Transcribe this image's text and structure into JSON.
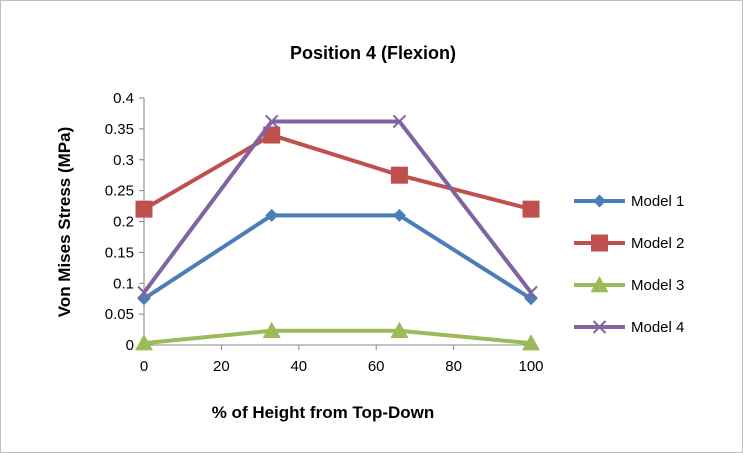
{
  "chart_data": {
    "type": "line",
    "title": "Position 4 (Flexion)",
    "xlabel": "% of Height from Top-Down",
    "ylabel": "Von Mises Stress (MPa)",
    "xlim": [
      0,
      100
    ],
    "ylim": [
      0,
      0.4
    ],
    "xticks": [
      0,
      20,
      40,
      60,
      80,
      100
    ],
    "yticks": [
      0,
      0.05,
      0.1,
      0.15,
      0.2,
      0.25,
      0.3,
      0.35,
      0.4
    ],
    "x_tick_labels": [
      "0",
      "20",
      "40",
      "60",
      "80",
      "100"
    ],
    "y_tick_labels": [
      "0",
      "0.05",
      "0.1",
      "0.15",
      "0.2",
      "0.25",
      "0.3",
      "0.35",
      "0.4"
    ],
    "grid": false,
    "legend_position": "right",
    "x": [
      0,
      33,
      66,
      100
    ],
    "series": [
      {
        "name": "Model 1",
        "values": [
          0.075,
          0.21,
          0.21,
          0.075
        ],
        "color": "#4a7ebb",
        "marker": "diamond"
      },
      {
        "name": "Model 2",
        "values": [
          0.22,
          0.34,
          0.275,
          0.22
        ],
        "color": "#c0504d",
        "marker": "square"
      },
      {
        "name": "Model 3",
        "values": [
          0.003,
          0.023,
          0.023,
          0.003
        ],
        "color": "#9bbb59",
        "marker": "triangle"
      },
      {
        "name": "Model 4",
        "values": [
          0.085,
          0.362,
          0.362,
          0.085
        ],
        "color": "#8064a2",
        "marker": "x"
      }
    ]
  }
}
